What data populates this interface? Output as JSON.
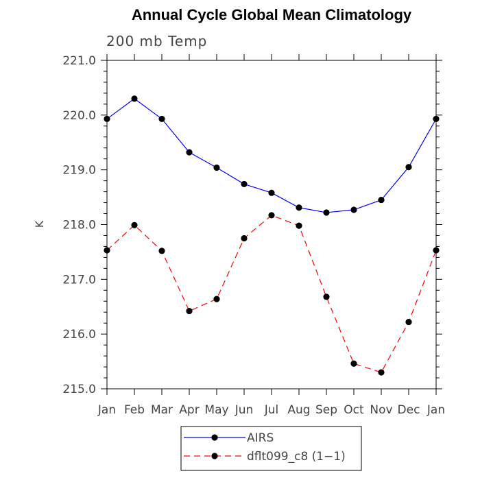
{
  "chart_data": {
    "type": "line",
    "title": "Annual Cycle Global Mean Climatology",
    "subtitle": "200 mb Temp",
    "xlabel": "",
    "ylabel": "K",
    "categories": [
      "Jan",
      "Feb",
      "Mar",
      "Apr",
      "May",
      "Jun",
      "Jul",
      "Aug",
      "Sep",
      "Oct",
      "Nov",
      "Dec",
      "Jan"
    ],
    "ylim": [
      215.0,
      221.0
    ],
    "yticks": [
      "215.0",
      "216.0",
      "217.0",
      "218.0",
      "219.0",
      "220.0",
      "221.0"
    ],
    "legend_position": "bottom-center",
    "grid": false,
    "series": [
      {
        "name": "AIRS",
        "color": "#0000ff",
        "line_style": "solid",
        "marker": "filled-circle",
        "values": [
          219.93,
          220.3,
          219.93,
          219.32,
          219.04,
          218.74,
          218.58,
          218.31,
          218.22,
          218.27,
          218.45,
          219.05,
          219.93
        ]
      },
      {
        "name": "dflt099_c8 (1−1)",
        "color": "#ff0000",
        "line_style": "dashed",
        "marker": "filled-circle",
        "values": [
          217.53,
          217.99,
          217.52,
          216.42,
          216.64,
          217.75,
          218.17,
          217.98,
          216.68,
          215.46,
          215.3,
          216.22,
          217.53
        ]
      }
    ]
  }
}
